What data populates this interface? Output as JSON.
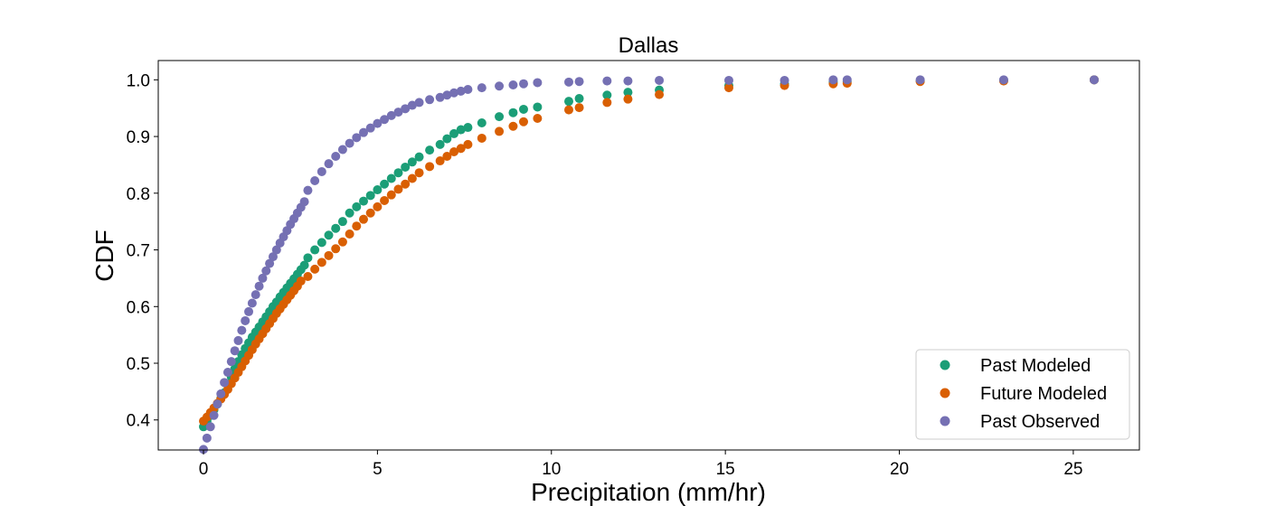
{
  "chart_data": {
    "type": "scatter",
    "title": "Dallas",
    "xlabel": "Precipitation (mm/hr)",
    "ylabel": "CDF",
    "xlim": [
      -1.3,
      26.9
    ],
    "ylim": [
      0.347,
      1.034
    ],
    "xticks": [
      0,
      5,
      10,
      15,
      20,
      25
    ],
    "yticks": [
      0.4,
      0.5,
      0.6,
      0.7,
      0.8,
      0.9,
      1.0
    ],
    "xtick_labels": [
      "0",
      "5",
      "10",
      "15",
      "20",
      "25"
    ],
    "ytick_labels": [
      "0.4",
      "0.5",
      "0.6",
      "0.7",
      "0.8",
      "0.9",
      "1.0"
    ],
    "grid": false,
    "legend_position": "lower-right",
    "series": [
      {
        "name": "Past Modeled",
        "color": "#1b9e77",
        "points": [
          [
            0,
            0.388
          ],
          [
            0.1,
            0.398
          ],
          [
            0.2,
            0.408
          ],
          [
            0.3,
            0.418
          ],
          [
            0.4,
            0.428
          ],
          [
            0.5,
            0.438
          ],
          [
            0.6,
            0.448
          ],
          [
            0.7,
            0.462
          ],
          [
            0.8,
            0.476
          ],
          [
            0.9,
            0.49
          ],
          [
            1.0,
            0.503
          ],
          [
            1.1,
            0.515
          ],
          [
            1.2,
            0.526
          ],
          [
            1.3,
            0.536
          ],
          [
            1.4,
            0.546
          ],
          [
            1.5,
            0.555
          ],
          [
            1.6,
            0.564
          ],
          [
            1.7,
            0.573
          ],
          [
            1.8,
            0.582
          ],
          [
            1.9,
            0.591
          ],
          [
            2.0,
            0.6
          ],
          [
            2.1,
            0.608
          ],
          [
            2.2,
            0.617
          ],
          [
            2.3,
            0.625
          ],
          [
            2.4,
            0.633
          ],
          [
            2.5,
            0.641
          ],
          [
            2.6,
            0.649
          ],
          [
            2.7,
            0.657
          ],
          [
            2.8,
            0.665
          ],
          [
            2.9,
            0.673
          ],
          [
            3.0,
            0.686
          ],
          [
            3.2,
            0.7
          ],
          [
            3.4,
            0.713
          ],
          [
            3.6,
            0.726
          ],
          [
            3.8,
            0.738
          ],
          [
            4.0,
            0.75
          ],
          [
            4.2,
            0.765
          ],
          [
            4.4,
            0.776
          ],
          [
            4.6,
            0.786
          ],
          [
            4.8,
            0.796
          ],
          [
            5.0,
            0.806
          ],
          [
            5.2,
            0.816
          ],
          [
            5.4,
            0.826
          ],
          [
            5.6,
            0.836
          ],
          [
            5.8,
            0.846
          ],
          [
            6.0,
            0.855
          ],
          [
            6.2,
            0.864
          ],
          [
            6.5,
            0.876
          ],
          [
            6.8,
            0.886
          ],
          [
            7.0,
            0.896
          ],
          [
            7.2,
            0.905
          ],
          [
            7.4,
            0.912
          ],
          [
            7.6,
            0.916
          ],
          [
            8.0,
            0.924
          ],
          [
            8.5,
            0.935
          ],
          [
            8.9,
            0.942
          ],
          [
            9.2,
            0.948
          ],
          [
            9.6,
            0.952
          ],
          [
            10.5,
            0.962
          ],
          [
            10.8,
            0.967
          ],
          [
            11.6,
            0.973
          ],
          [
            12.2,
            0.978
          ],
          [
            13.1,
            0.982
          ],
          [
            15.1,
            0.99
          ],
          [
            16.7,
            0.993
          ],
          [
            18.1,
            0.996
          ],
          [
            18.5,
            0.997
          ],
          [
            20.6,
            0.998
          ],
          [
            23.0,
            0.999
          ],
          [
            25.6,
            1.0
          ]
        ]
      },
      {
        "name": "Future Modeled",
        "color": "#d95f02",
        "points": [
          [
            0,
            0.398
          ],
          [
            0.1,
            0.405
          ],
          [
            0.2,
            0.413
          ],
          [
            0.3,
            0.421
          ],
          [
            0.4,
            0.429
          ],
          [
            0.5,
            0.437
          ],
          [
            0.6,
            0.445
          ],
          [
            0.7,
            0.454
          ],
          [
            0.8,
            0.464
          ],
          [
            0.9,
            0.474
          ],
          [
            1.0,
            0.484
          ],
          [
            1.1,
            0.494
          ],
          [
            1.2,
            0.504
          ],
          [
            1.3,
            0.514
          ],
          [
            1.4,
            0.524
          ],
          [
            1.5,
            0.534
          ],
          [
            1.6,
            0.543
          ],
          [
            1.7,
            0.552
          ],
          [
            1.8,
            0.561
          ],
          [
            1.9,
            0.57
          ],
          [
            2.0,
            0.579
          ],
          [
            2.1,
            0.588
          ],
          [
            2.2,
            0.596
          ],
          [
            2.3,
            0.604
          ],
          [
            2.4,
            0.612
          ],
          [
            2.5,
            0.62
          ],
          [
            2.6,
            0.628
          ],
          [
            2.7,
            0.636
          ],
          [
            2.8,
            0.645
          ],
          [
            3.0,
            0.653
          ],
          [
            3.2,
            0.666
          ],
          [
            3.4,
            0.678
          ],
          [
            3.6,
            0.69
          ],
          [
            3.8,
            0.702
          ],
          [
            4.0,
            0.714
          ],
          [
            4.2,
            0.728
          ],
          [
            4.4,
            0.742
          ],
          [
            4.6,
            0.754
          ],
          [
            4.8,
            0.765
          ],
          [
            5.0,
            0.776
          ],
          [
            5.2,
            0.787
          ],
          [
            5.4,
            0.797
          ],
          [
            5.6,
            0.807
          ],
          [
            5.8,
            0.816
          ],
          [
            6.0,
            0.826
          ],
          [
            6.2,
            0.836
          ],
          [
            6.5,
            0.847
          ],
          [
            6.8,
            0.857
          ],
          [
            7.0,
            0.865
          ],
          [
            7.2,
            0.873
          ],
          [
            7.4,
            0.879
          ],
          [
            7.6,
            0.886
          ],
          [
            8.0,
            0.897
          ],
          [
            8.5,
            0.909
          ],
          [
            8.9,
            0.918
          ],
          [
            9.2,
            0.926
          ],
          [
            9.6,
            0.932
          ],
          [
            10.5,
            0.947
          ],
          [
            10.8,
            0.951
          ],
          [
            11.6,
            0.96
          ],
          [
            12.2,
            0.966
          ],
          [
            13.1,
            0.974
          ],
          [
            15.1,
            0.986
          ],
          [
            16.7,
            0.99
          ],
          [
            18.1,
            0.993
          ],
          [
            18.5,
            0.994
          ],
          [
            20.6,
            0.997
          ],
          [
            23.0,
            0.998
          ],
          [
            25.6,
            1.0
          ]
        ]
      },
      {
        "name": "Past Observed",
        "color": "#7570b3",
        "points": [
          [
            0,
            0.348
          ],
          [
            0.1,
            0.368
          ],
          [
            0.2,
            0.388
          ],
          [
            0.3,
            0.408
          ],
          [
            0.4,
            0.428
          ],
          [
            0.5,
            0.446
          ],
          [
            0.6,
            0.466
          ],
          [
            0.7,
            0.484
          ],
          [
            0.8,
            0.503
          ],
          [
            0.9,
            0.522
          ],
          [
            1.0,
            0.54
          ],
          [
            1.1,
            0.558
          ],
          [
            1.2,
            0.575
          ],
          [
            1.3,
            0.591
          ],
          [
            1.4,
            0.606
          ],
          [
            1.5,
            0.621
          ],
          [
            1.6,
            0.636
          ],
          [
            1.7,
            0.65
          ],
          [
            1.8,
            0.663
          ],
          [
            1.9,
            0.676
          ],
          [
            2.0,
            0.688
          ],
          [
            2.1,
            0.7
          ],
          [
            2.2,
            0.712
          ],
          [
            2.3,
            0.723
          ],
          [
            2.4,
            0.734
          ],
          [
            2.5,
            0.745
          ],
          [
            2.6,
            0.755
          ],
          [
            2.7,
            0.765
          ],
          [
            2.8,
            0.775
          ],
          [
            2.9,
            0.785
          ],
          [
            3.0,
            0.805
          ],
          [
            3.2,
            0.822
          ],
          [
            3.4,
            0.838
          ],
          [
            3.6,
            0.852
          ],
          [
            3.8,
            0.865
          ],
          [
            4.0,
            0.877
          ],
          [
            4.2,
            0.888
          ],
          [
            4.4,
            0.898
          ],
          [
            4.6,
            0.907
          ],
          [
            4.8,
            0.915
          ],
          [
            5.0,
            0.923
          ],
          [
            5.2,
            0.93
          ],
          [
            5.4,
            0.937
          ],
          [
            5.6,
            0.943
          ],
          [
            5.8,
            0.949
          ],
          [
            6.0,
            0.955
          ],
          [
            6.2,
            0.96
          ],
          [
            6.5,
            0.965
          ],
          [
            6.8,
            0.969
          ],
          [
            7.0,
            0.973
          ],
          [
            7.2,
            0.977
          ],
          [
            7.4,
            0.98
          ],
          [
            7.6,
            0.983
          ],
          [
            8.0,
            0.986
          ],
          [
            8.5,
            0.989
          ],
          [
            8.9,
            0.991
          ],
          [
            9.2,
            0.993
          ],
          [
            9.6,
            0.995
          ],
          [
            10.5,
            0.996
          ],
          [
            10.8,
            0.997
          ],
          [
            11.6,
            0.998
          ],
          [
            12.2,
            0.998
          ],
          [
            13.1,
            0.999
          ],
          [
            15.1,
            0.999
          ],
          [
            16.7,
            0.999
          ],
          [
            18.1,
            1.0
          ],
          [
            18.5,
            1.0
          ],
          [
            20.6,
            1.0
          ],
          [
            23.0,
            1.0
          ],
          [
            25.6,
            1.0
          ]
        ]
      }
    ]
  }
}
